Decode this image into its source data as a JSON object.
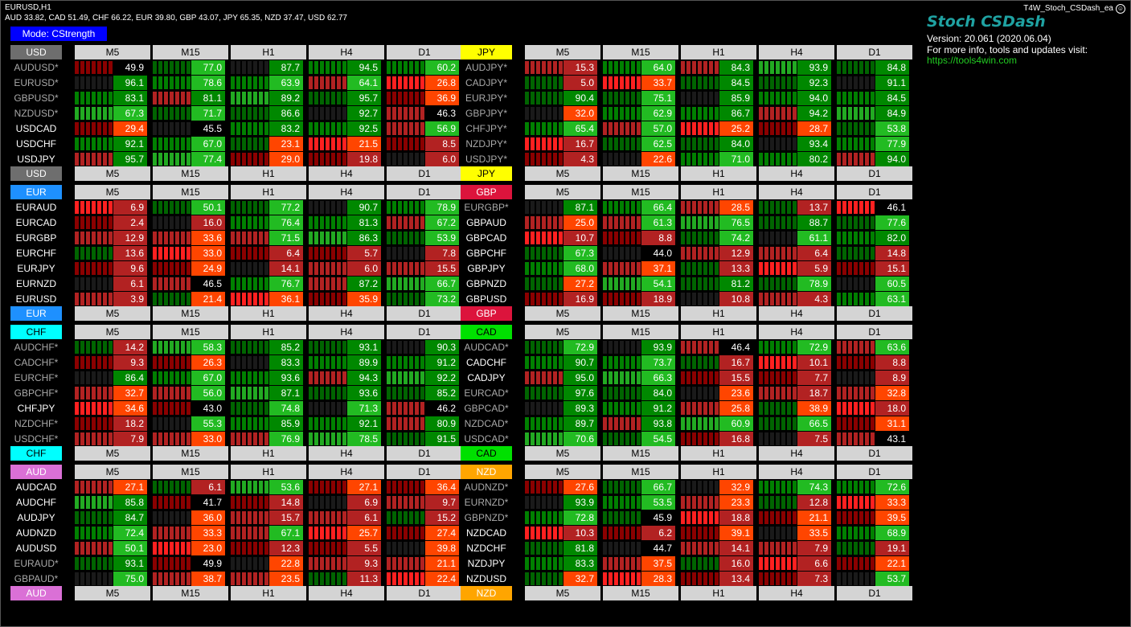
{
  "window": {
    "symbol": "EURUSD,H1",
    "strengths": "AUD 33.82, CAD 51.49, CHF 66.22, EUR 39.80, GBP 43.07, JPY 65.35, NZD 37.47, USD 62.77",
    "ea_name": "T4W_Stoch_CSDash_ea",
    "smiley_icon": "☺"
  },
  "mode_button": "Mode: CStrength",
  "brand": {
    "title": "Stoch CSDash",
    "version": "Version: 20.061 (2020.06.04)",
    "info": "For more info, tools and updates visit:",
    "url": "https://tools4win.com"
  },
  "timeframes": [
    "M5",
    "M15",
    "H1",
    "H4",
    "D1"
  ],
  "colors": {
    "USD": "#6e6e6e",
    "JPY": "#ffff00",
    "EUR": "#1e90ff",
    "GBP": "#dc143c",
    "CHF": "#00ffff",
    "CAD": "#00e000",
    "AUD": "#da70d6",
    "NZD": "#ffa500",
    "header_bg": "#d4d4d4",
    "pair_inverted": "#a9a9a9"
  },
  "blocks": [
    {
      "currency": "USD",
      "rows": [
        {
          "pair": "AUDUSD*",
          "v": [
            "49.9",
            "77.0",
            "87.7",
            "94.5",
            "60.2"
          ]
        },
        {
          "pair": "EURUSD*",
          "v": [
            "96.1",
            "78.6",
            "63.9",
            "64.1",
            "26.8"
          ]
        },
        {
          "pair": "GBPUSD*",
          "v": [
            "83.1",
            "81.1",
            "89.2",
            "95.7",
            "36.9"
          ]
        },
        {
          "pair": "NZDUSD*",
          "v": [
            "67.3",
            "71.7",
            "86.6",
            "92.7",
            "46.3"
          ]
        },
        {
          "pair": "USDCAD",
          "v": [
            "29.4",
            "45.5",
            "83.2",
            "92.5",
            "56.9"
          ]
        },
        {
          "pair": "USDCHF",
          "v": [
            "92.1",
            "67.0",
            "23.1",
            "21.5",
            "8.5"
          ]
        },
        {
          "pair": "USDJPY",
          "v": [
            "95.7",
            "77.4",
            "29.0",
            "19.8",
            "6.0"
          ]
        }
      ]
    },
    {
      "currency": "JPY",
      "rows": [
        {
          "pair": "AUDJPY*",
          "v": [
            "15.3",
            "64.0",
            "84.3",
            "93.9",
            "84.8"
          ]
        },
        {
          "pair": "CADJPY*",
          "v": [
            "5.0",
            "33.7",
            "84.5",
            "92.3",
            "91.1"
          ]
        },
        {
          "pair": "EURJPY*",
          "v": [
            "90.4",
            "75.1",
            "85.9",
            "94.0",
            "84.5"
          ]
        },
        {
          "pair": "GBPJPY*",
          "v": [
            "32.0",
            "62.9",
            "86.7",
            "94.2",
            "84.9"
          ]
        },
        {
          "pair": "CHFJPY*",
          "v": [
            "65.4",
            "57.0",
            "25.2",
            "28.7",
            "53.8"
          ]
        },
        {
          "pair": "NZDJPY*",
          "v": [
            "16.7",
            "62.5",
            "84.0",
            "93.4",
            "77.9"
          ]
        },
        {
          "pair": "USDJPY*",
          "v": [
            "4.3",
            "22.6",
            "71.0",
            "80.2",
            "94.0"
          ]
        }
      ]
    },
    {
      "currency": "EUR",
      "rows": [
        {
          "pair": "EURAUD",
          "v": [
            "6.9",
            "50.1",
            "77.2",
            "90.7",
            "78.9"
          ]
        },
        {
          "pair": "EURCAD",
          "v": [
            "2.4",
            "16.0",
            "76.4",
            "81.3",
            "67.2"
          ]
        },
        {
          "pair": "EURGBP",
          "v": [
            "12.9",
            "33.6",
            "71.5",
            "86.3",
            "53.9"
          ]
        },
        {
          "pair": "EURCHF",
          "v": [
            "13.6",
            "33.0",
            "6.4",
            "5.7",
            "7.8"
          ]
        },
        {
          "pair": "EURJPY",
          "v": [
            "9.6",
            "24.9",
            "14.1",
            "6.0",
            "15.5"
          ]
        },
        {
          "pair": "EURNZD",
          "v": [
            "6.1",
            "46.5",
            "76.7",
            "87.2",
            "66.7"
          ]
        },
        {
          "pair": "EURUSD",
          "v": [
            "3.9",
            "21.4",
            "36.1",
            "35.9",
            "73.2"
          ]
        }
      ]
    },
    {
      "currency": "GBP",
      "rows": [
        {
          "pair": "EURGBP*",
          "v": [
            "87.1",
            "66.4",
            "28.5",
            "13.7",
            "46.1"
          ]
        },
        {
          "pair": "GBPAUD",
          "v": [
            "25.0",
            "61.3",
            "76.5",
            "88.7",
            "77.6"
          ]
        },
        {
          "pair": "GBPCAD",
          "v": [
            "10.7",
            "8.8",
            "74.2",
            "61.1",
            "82.0"
          ]
        },
        {
          "pair": "GBPCHF",
          "v": [
            "67.3",
            "44.0",
            "12.9",
            "6.4",
            "14.8"
          ]
        },
        {
          "pair": "GBPJPY",
          "v": [
            "68.0",
            "37.1",
            "13.3",
            "5.9",
            "15.1"
          ]
        },
        {
          "pair": "GBPNZD",
          "v": [
            "27.2",
            "54.1",
            "81.2",
            "78.9",
            "60.5"
          ]
        },
        {
          "pair": "GBPUSD",
          "v": [
            "16.9",
            "18.9",
            "10.8",
            "4.3",
            "63.1"
          ]
        }
      ]
    },
    {
      "currency": "CHF",
      "rows": [
        {
          "pair": "AUDCHF*",
          "v": [
            "14.2",
            "58.3",
            "85.2",
            "93.1",
            "90.3"
          ]
        },
        {
          "pair": "CADCHF*",
          "v": [
            "9.3",
            "26.3",
            "83.3",
            "89.9",
            "91.2"
          ]
        },
        {
          "pair": "EURCHF*",
          "v": [
            "86.4",
            "67.0",
            "93.6",
            "94.3",
            "92.2"
          ]
        },
        {
          "pair": "GBPCHF*",
          "v": [
            "32.7",
            "56.0",
            "87.1",
            "93.6",
            "85.2"
          ]
        },
        {
          "pair": "CHFJPY",
          "v": [
            "34.6",
            "43.0",
            "74.8",
            "71.3",
            "46.2"
          ]
        },
        {
          "pair": "NZDCHF*",
          "v": [
            "18.2",
            "55.3",
            "85.9",
            "92.1",
            "80.9"
          ]
        },
        {
          "pair": "USDCHF*",
          "v": [
            "7.9",
            "33.0",
            "76.9",
            "78.5",
            "91.5"
          ]
        }
      ]
    },
    {
      "currency": "CAD",
      "rows": [
        {
          "pair": "AUDCAD*",
          "v": [
            "72.9",
            "93.9",
            "46.4",
            "72.9",
            "63.6"
          ]
        },
        {
          "pair": "CADCHF",
          "v": [
            "90.7",
            "73.7",
            "16.7",
            "10.1",
            "8.8"
          ]
        },
        {
          "pair": "CADJPY",
          "v": [
            "95.0",
            "66.3",
            "15.5",
            "7.7",
            "8.9"
          ]
        },
        {
          "pair": "EURCAD*",
          "v": [
            "97.6",
            "84.0",
            "23.6",
            "18.7",
            "32.8"
          ]
        },
        {
          "pair": "GBPCAD*",
          "v": [
            "89.3",
            "91.2",
            "25.8",
            "38.9",
            "18.0"
          ]
        },
        {
          "pair": "NZDCAD*",
          "v": [
            "89.7",
            "93.8",
            "60.9",
            "66.5",
            "31.1"
          ]
        },
        {
          "pair": "USDCAD*",
          "v": [
            "70.6",
            "54.5",
            "16.8",
            "7.5",
            "43.1"
          ]
        }
      ]
    },
    {
      "currency": "AUD",
      "rows": [
        {
          "pair": "AUDCAD",
          "v": [
            "27.1",
            "6.1",
            "53.6",
            "27.1",
            "36.4"
          ]
        },
        {
          "pair": "AUDCHF",
          "v": [
            "85.8",
            "41.7",
            "14.8",
            "6.9",
            "9.7"
          ]
        },
        {
          "pair": "AUDJPY",
          "v": [
            "84.7",
            "36.0",
            "15.7",
            "6.1",
            "15.2"
          ]
        },
        {
          "pair": "AUDNZD",
          "v": [
            "72.4",
            "33.3",
            "67.1",
            "25.7",
            "27.4"
          ]
        },
        {
          "pair": "AUDUSD",
          "v": [
            "50.1",
            "23.0",
            "12.3",
            "5.5",
            "39.8"
          ]
        },
        {
          "pair": "EURAUD*",
          "v": [
            "93.1",
            "49.9",
            "22.8",
            "9.3",
            "21.1"
          ]
        },
        {
          "pair": "GBPAUD*",
          "v": [
            "75.0",
            "38.7",
            "23.5",
            "11.3",
            "22.4"
          ]
        }
      ]
    },
    {
      "currency": "NZD",
      "rows": [
        {
          "pair": "AUDNZD*",
          "v": [
            "27.6",
            "66.7",
            "32.9",
            "74.3",
            "72.6"
          ]
        },
        {
          "pair": "EURNZD*",
          "v": [
            "93.9",
            "53.5",
            "23.3",
            "12.8",
            "33.3"
          ]
        },
        {
          "pair": "GBPNZD*",
          "v": [
            "72.8",
            "45.9",
            "18.8",
            "21.1",
            "39.5"
          ]
        },
        {
          "pair": "NZDCAD",
          "v": [
            "10.3",
            "6.2",
            "39.1",
            "33.5",
            "68.9"
          ]
        },
        {
          "pair": "NZDCHF",
          "v": [
            "81.8",
            "44.7",
            "14.1",
            "7.9",
            "19.1"
          ]
        },
        {
          "pair": "NZDJPY",
          "v": [
            "83.3",
            "37.5",
            "16.0",
            "6.6",
            "22.1"
          ]
        },
        {
          "pair": "NZDUSD",
          "v": [
            "32.7",
            "28.3",
            "13.4",
            "7.3",
            "53.7"
          ]
        }
      ]
    }
  ]
}
